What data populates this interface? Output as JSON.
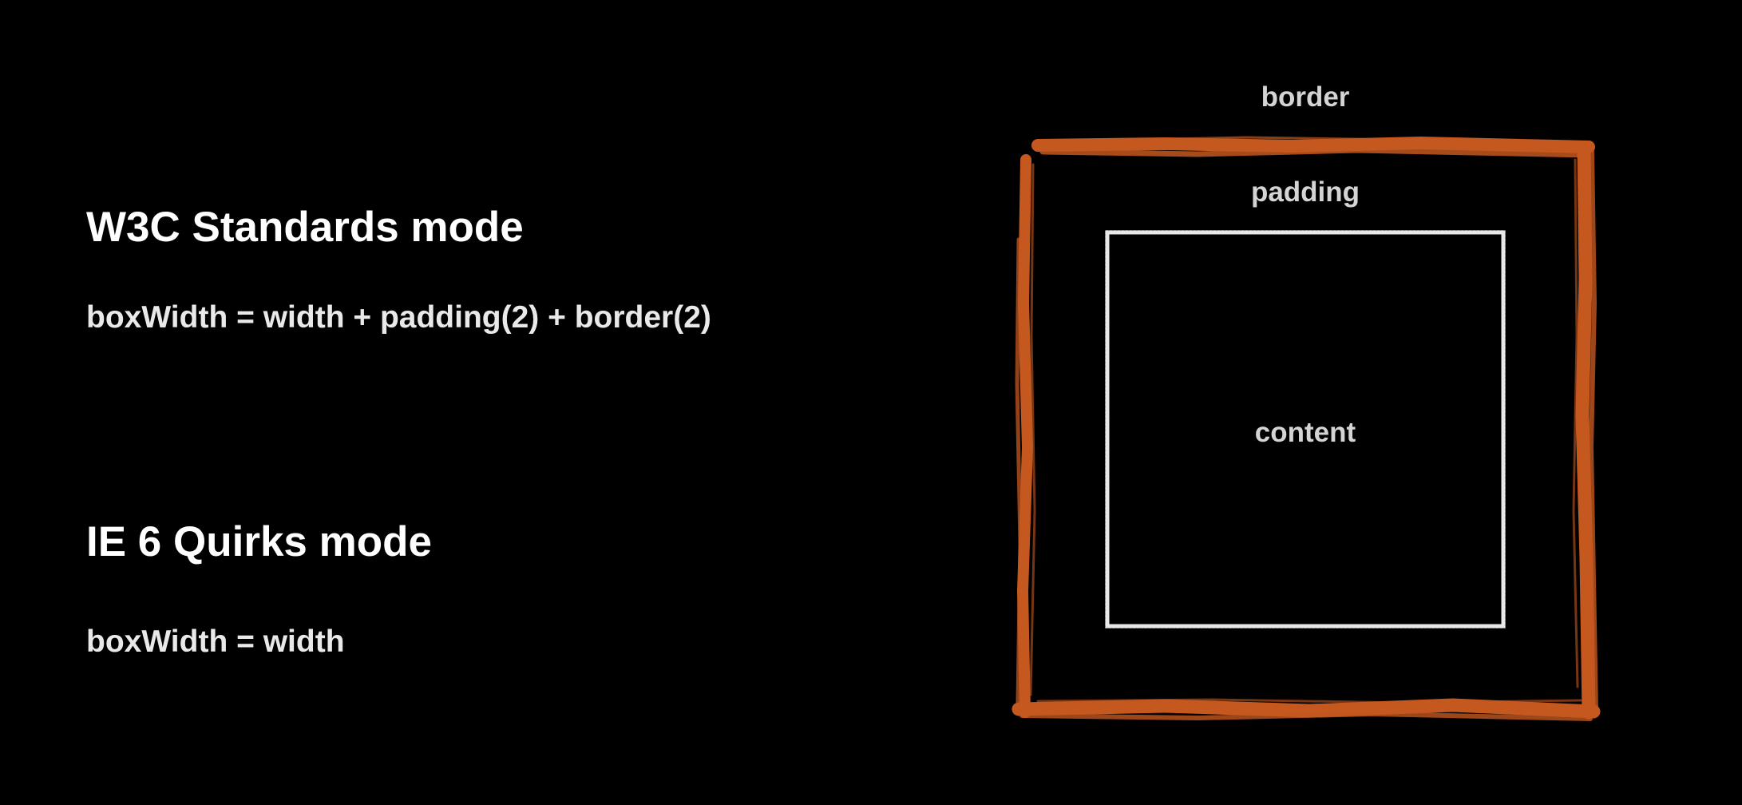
{
  "standards": {
    "heading": "W3C Standards mode",
    "formula": "boxWidth = width + padding(2) + border(2)"
  },
  "quirks": {
    "heading": "IE 6 Quirks mode",
    "formula": "boxWidth = width"
  },
  "box_model": {
    "border_label": "border",
    "padding_label": "padding",
    "content_label": "content",
    "border_color": "#c4581f",
    "content_outline_color": "#e8e8e8",
    "background_color": "#000000"
  }
}
